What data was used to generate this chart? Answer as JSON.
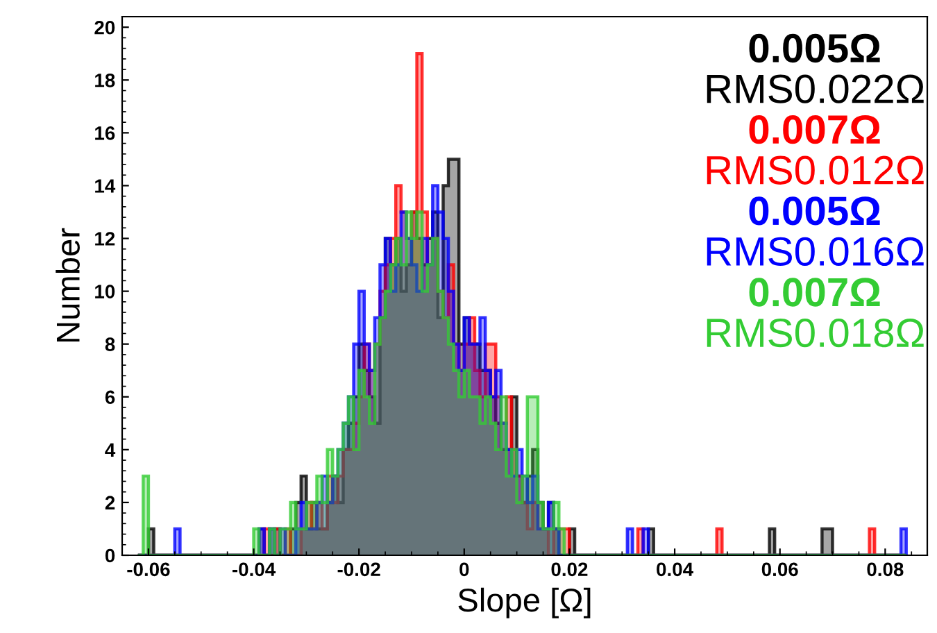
{
  "chart_data": {
    "type": "histogram",
    "xlabel": "Slope [Ω]",
    "ylabel": "Number",
    "xlim": [
      -0.065,
      0.088
    ],
    "ylim": [
      0,
      20.4
    ],
    "xticks": [
      {
        "value": -0.06,
        "label": "-0.06"
      },
      {
        "value": -0.04,
        "label": "-0.04"
      },
      {
        "value": -0.02,
        "label": "-0.02"
      },
      0,
      0.02,
      0.04,
      0.06,
      0.08
    ],
    "yticks": [
      0,
      2,
      4,
      6,
      8,
      10,
      12,
      14,
      16,
      18,
      20
    ],
    "legend": "top right",
    "grid": false,
    "bins": [
      -0.062,
      -0.061,
      -0.06,
      -0.059,
      -0.055,
      -0.054,
      -0.04,
      -0.039,
      -0.038,
      -0.037,
      -0.036,
      -0.035,
      -0.034,
      -0.033,
      -0.032,
      -0.031,
      -0.03,
      -0.029,
      -0.028,
      -0.027,
      -0.026,
      -0.025,
      -0.024,
      -0.023,
      -0.022,
      -0.021,
      -0.02,
      -0.019,
      -0.018,
      -0.017,
      -0.016,
      -0.015,
      -0.014,
      -0.013,
      -0.012,
      -0.011,
      -0.01,
      -0.009,
      -0.008,
      -0.007,
      -0.006,
      -0.005,
      -0.004,
      -0.003,
      -0.002,
      -0.001,
      0,
      0.001,
      0.002,
      0.003,
      0.004,
      0.005,
      0.006,
      0.007,
      0.008,
      0.009,
      0.01,
      0.011,
      0.012,
      0.013,
      0.014,
      0.015,
      0.016,
      0.017,
      0.018,
      0.019,
      0.02,
      0.021,
      0.022,
      0.023,
      0.024,
      0.031,
      0.032,
      0.033,
      0.034,
      0.035,
      0.036,
      0.048,
      0.049,
      0.058,
      0.059,
      0.068,
      0.069,
      0.07,
      0.077,
      0.078,
      0.083,
      0.084
    ],
    "series": [
      {
        "name": "0.005Ω\nRMS0.022Ω",
        "color": "#000000",
        "values": [
          0,
          0,
          1,
          0,
          0,
          0,
          0,
          1,
          0,
          1,
          1,
          0,
          0,
          1,
          2,
          3,
          1,
          2,
          1,
          1,
          2,
          3,
          2,
          4,
          5,
          6,
          8,
          7,
          6,
          5,
          9,
          12,
          11,
          12,
          10,
          11,
          13,
          12,
          11,
          12,
          13,
          9,
          14,
          15,
          15,
          8,
          9,
          8,
          8,
          7,
          7,
          6,
          5,
          4,
          4,
          6,
          3,
          2,
          3,
          4,
          2,
          1,
          2,
          1,
          0,
          0,
          1,
          0,
          0,
          0,
          0,
          0,
          0,
          0,
          0,
          1,
          0,
          0,
          0,
          1,
          0,
          1,
          1,
          0,
          0,
          0,
          0
        ]
      },
      {
        "name": "0.007Ω\nRMS0.012Ω",
        "color": "#ff0000",
        "values": [
          0,
          0,
          0,
          0,
          0,
          0,
          0,
          0,
          1,
          0,
          1,
          0,
          1,
          0,
          0,
          1,
          2,
          1,
          2,
          1,
          3,
          2,
          3,
          4,
          4,
          5,
          6,
          8,
          7,
          8,
          10,
          11,
          12,
          14,
          13,
          12,
          13,
          19,
          13,
          11,
          12,
          10,
          9,
          11,
          8,
          7,
          8,
          9,
          7,
          6,
          8,
          8,
          6,
          5,
          6,
          4,
          3,
          2,
          1,
          2,
          1,
          1,
          0,
          1,
          1,
          1,
          0,
          0,
          0,
          0,
          0,
          0,
          0,
          1,
          0,
          0,
          0,
          1,
          0,
          0,
          0,
          0,
          0,
          0,
          1,
          0,
          0
        ]
      },
      {
        "name": "0.005Ω\nRMS0.016Ω",
        "color": "#0000ff",
        "values": [
          0,
          0,
          0,
          0,
          1,
          0,
          0,
          1,
          0,
          1,
          0,
          1,
          0,
          0,
          1,
          2,
          1,
          1,
          2,
          3,
          2,
          3,
          4,
          5,
          6,
          8,
          10,
          8,
          7,
          9,
          11,
          12,
          10,
          11,
          13,
          12,
          11,
          10,
          12,
          11,
          14,
          13,
          12,
          10,
          8,
          7,
          9,
          8,
          8,
          9,
          7,
          6,
          7,
          5,
          4,
          3,
          4,
          3,
          2,
          3,
          1,
          1,
          2,
          1,
          0,
          0,
          0,
          0,
          0,
          0,
          0,
          1,
          0,
          0,
          1,
          0,
          0,
          0,
          0,
          0,
          0,
          0,
          0,
          0,
          0,
          0,
          1
        ]
      },
      {
        "name": "0.007Ω\nRMS0.018Ω",
        "color": "#33cc33",
        "values": [
          0,
          3,
          0,
          0,
          0,
          0,
          1,
          0,
          0,
          1,
          0,
          1,
          1,
          2,
          1,
          1,
          2,
          2,
          3,
          2,
          4,
          3,
          4,
          5,
          6,
          4,
          7,
          6,
          5,
          8,
          9,
          10,
          11,
          12,
          11,
          13,
          12,
          13,
          10,
          11,
          12,
          10,
          9,
          8,
          7,
          6,
          7,
          6,
          6,
          5,
          6,
          5,
          4,
          6,
          3,
          4,
          2,
          3,
          6,
          6,
          2,
          1,
          1,
          2,
          1,
          0,
          0,
          0,
          0,
          0,
          0,
          0,
          0,
          0,
          0,
          0,
          0,
          0,
          0,
          0,
          0,
          0,
          0,
          0,
          0,
          0,
          0
        ]
      }
    ]
  }
}
